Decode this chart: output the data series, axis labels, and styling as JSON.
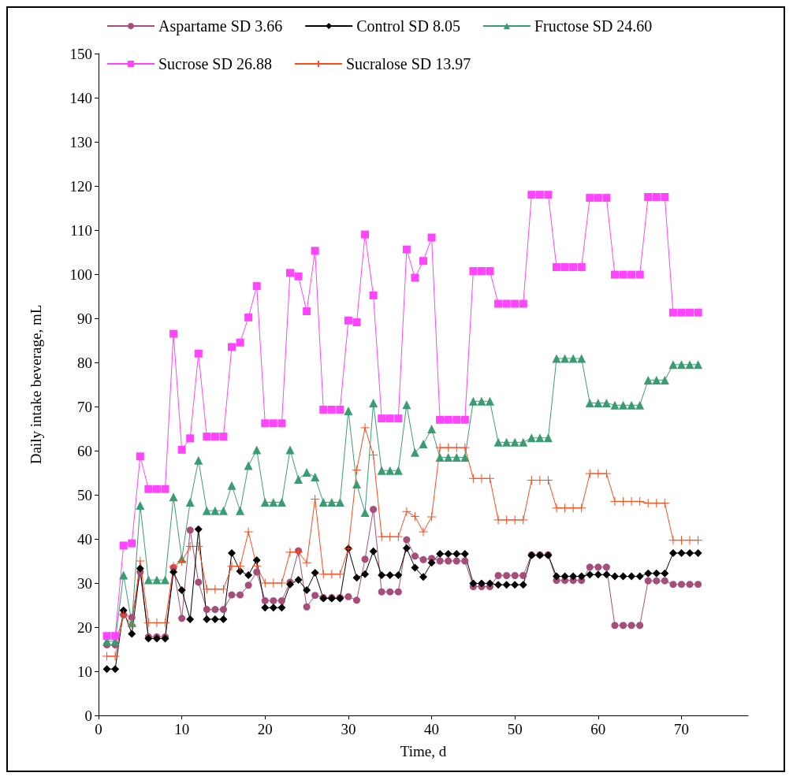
{
  "chart_data": {
    "type": "line",
    "xlabel": "Time, d",
    "ylabel": "Daily intake beverage, mL",
    "x": [
      1,
      2,
      3,
      4,
      5,
      6,
      7,
      8,
      9,
      10,
      11,
      12,
      13,
      14,
      15,
      16,
      17,
      18,
      19,
      20,
      21,
      22,
      23,
      24,
      25,
      26,
      27,
      28,
      29,
      30,
      31,
      32,
      33,
      34,
      35,
      36,
      37,
      38,
      39,
      40,
      41,
      42,
      43,
      44,
      45,
      46,
      47,
      48,
      49,
      50,
      51,
      52,
      53,
      54,
      55,
      56,
      57,
      58,
      59,
      60,
      61,
      62,
      63,
      64,
      65,
      66,
      67,
      68,
      69,
      70,
      71,
      72
    ],
    "series": [
      {
        "name": "Aspartame SD 3.66",
        "color": "#a64d79",
        "marker": "circle",
        "values": [
          16,
          16,
          22.8,
          22.2,
          32.5,
          17.8,
          17.8,
          17.8,
          33.5,
          22,
          42,
          30.2,
          24,
          24,
          24,
          27.3,
          27.3,
          29.5,
          32.5,
          26,
          26,
          26,
          30.2,
          37.3,
          24.6,
          27.2,
          26.7,
          26.7,
          26.7,
          26.9,
          26.1,
          35.4,
          46.7,
          28,
          28,
          28,
          39.8,
          36.1,
          35.3,
          35.6,
          35,
          35,
          35,
          35,
          29.2,
          29.2,
          29.2,
          31.7,
          31.7,
          31.7,
          31.7,
          36.4,
          36.4,
          36.4,
          30.6,
          30.6,
          30.6,
          30.6,
          33.6,
          33.6,
          33.6,
          20.4,
          20.4,
          20.4,
          20.4,
          30.5,
          30.5,
          30.5,
          29.7,
          29.7,
          29.7,
          29.7
        ]
      },
      {
        "name": "Control SD 8.05",
        "color": "#000000",
        "marker": "diamond",
        "values": [
          10.5,
          10.5,
          23.8,
          18.5,
          33.3,
          17.4,
          17.4,
          17.4,
          32.5,
          28.4,
          21.8,
          42.2,
          21.8,
          21.8,
          21.8,
          36.8,
          32.7,
          31.8,
          35.2,
          24.4,
          24.4,
          24.4,
          29.7,
          30.7,
          28.4,
          32.3,
          26.5,
          26.5,
          26.5,
          37.8,
          31.2,
          32,
          37.2,
          31.8,
          31.8,
          31.8,
          37.9,
          33.5,
          31.4,
          34.6,
          36.6,
          36.6,
          36.6,
          36.6,
          29.9,
          29.9,
          29.9,
          29.6,
          29.6,
          29.6,
          29.6,
          36.3,
          36.3,
          36.3,
          31.5,
          31.5,
          31.5,
          31.5,
          31.9,
          31.9,
          31.9,
          31.5,
          31.5,
          31.5,
          31.5,
          32.2,
          32.2,
          32.2,
          36.8,
          36.8,
          36.8,
          36.8
        ]
      },
      {
        "name": "Fructose SD 24.60",
        "color": "#3a9c73",
        "marker": "triangle",
        "values": [
          16.8,
          16.8,
          31.8,
          21,
          47.6,
          30.7,
          30.7,
          30.7,
          49.5,
          35.5,
          48.3,
          57.8,
          46.4,
          46.4,
          46.4,
          52.1,
          46.4,
          56.6,
          60.2,
          48.3,
          48.3,
          48.3,
          60.2,
          53.5,
          55.1,
          54,
          48.3,
          48.3,
          48.3,
          69,
          52.4,
          46,
          70.8,
          55.5,
          55.5,
          55.5,
          70.4,
          59.6,
          61.5,
          64.9,
          58.5,
          58.5,
          58.5,
          58.5,
          71.2,
          71.2,
          71.2,
          61.9,
          61.9,
          61.9,
          61.9,
          62.9,
          62.9,
          62.9,
          80.9,
          80.9,
          80.9,
          80.9,
          70.8,
          70.8,
          70.8,
          70.3,
          70.3,
          70.3,
          70.3,
          76,
          76,
          76,
          79.5,
          79.5,
          79.5,
          79.5
        ]
      },
      {
        "name": "Sucrose SD 26.88",
        "color": "#ff44ff",
        "marker": "square",
        "values": [
          18,
          18,
          38.5,
          39,
          58.7,
          51.3,
          51.3,
          51.3,
          86.5,
          60.2,
          62.8,
          82,
          63.2,
          63.2,
          63.2,
          83.5,
          84.5,
          90.2,
          97.3,
          66.2,
          66.2,
          66.2,
          100.3,
          99.5,
          91.6,
          105.3,
          69.3,
          69.3,
          69.3,
          89.5,
          89.1,
          109,
          95.2,
          67.3,
          67.3,
          67.3,
          105.6,
          99.2,
          103,
          108.3,
          67,
          67,
          67,
          67,
          100.7,
          100.7,
          100.7,
          93.3,
          93.3,
          93.3,
          93.3,
          118,
          118,
          118,
          101.6,
          101.6,
          101.6,
          101.6,
          117.3,
          117.3,
          117.3,
          99.9,
          99.9,
          99.9,
          99.9,
          117.5,
          117.5,
          117.5,
          91.3,
          91.3,
          91.3,
          91.3
        ]
      },
      {
        "name": "Sucralose SD 13.97",
        "color": "#ff4a1a",
        "marker": "cross",
        "values": [
          13.4,
          13.4,
          22.8,
          20.5,
          35,
          21,
          21,
          21,
          33.8,
          34.9,
          38.3,
          38.3,
          28.6,
          28.6,
          28.6,
          33.8,
          33.8,
          41.6,
          33.8,
          30,
          30,
          30,
          37,
          37,
          34.6,
          49,
          32,
          32,
          32,
          37.8,
          55.6,
          65.2,
          59,
          40.5,
          40.5,
          40.5,
          46.2,
          45.1,
          41.6,
          45,
          60.7,
          60.7,
          60.7,
          60.7,
          53.7,
          53.7,
          53.7,
          44.3,
          44.3,
          44.3,
          44.3,
          53.3,
          53.3,
          53.3,
          47,
          47,
          47,
          47,
          54.8,
          54.8,
          54.8,
          48.5,
          48.5,
          48.5,
          48.5,
          48.1,
          48.1,
          48.1,
          39.7,
          39.7,
          39.7,
          39.7
        ]
      }
    ],
    "xlim": [
      0,
      78
    ],
    "xticks": [
      0,
      10,
      20,
      30,
      40,
      50,
      60,
      70
    ],
    "ylim": [
      0,
      150
    ],
    "yticks": [
      0,
      10,
      20,
      30,
      40,
      50,
      60,
      70,
      80,
      90,
      100,
      110,
      120,
      130,
      140,
      150
    ],
    "grid": false,
    "legend": "top"
  }
}
